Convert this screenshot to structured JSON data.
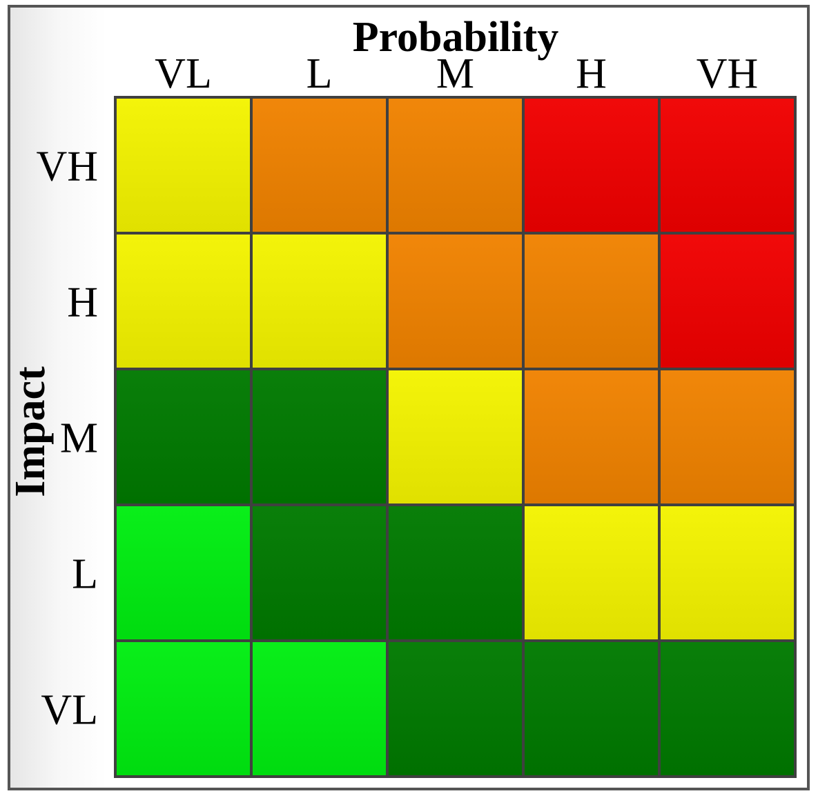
{
  "chart_data": {
    "type": "heatmap",
    "title": "",
    "xlabel": "Probability",
    "ylabel": "Impact",
    "x_categories": [
      "VL",
      "L",
      "M",
      "H",
      "VH"
    ],
    "y_categories": [
      "VH",
      "H",
      "M",
      "L",
      "VL"
    ],
    "levels": {
      "bright_green": "#00ee10",
      "dark_green": "#007a00",
      "yellow": "#f4f400",
      "orange": "#f08200",
      "red": "#f00000"
    },
    "cells": [
      [
        "yellow",
        "orange",
        "orange",
        "red",
        "red"
      ],
      [
        "yellow",
        "yellow",
        "orange",
        "orange",
        "red"
      ],
      [
        "dark_green",
        "dark_green",
        "yellow",
        "orange",
        "orange"
      ],
      [
        "bright_green",
        "dark_green",
        "dark_green",
        "yellow",
        "yellow"
      ],
      [
        "bright_green",
        "bright_green",
        "dark_green",
        "dark_green",
        "dark_green"
      ]
    ],
    "grid": true,
    "legend": "none"
  }
}
